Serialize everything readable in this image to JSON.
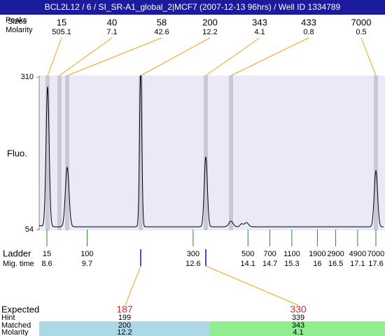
{
  "header": {
    "title": "BCL2L12 / 6 / SI_SR-A1_global_2|MCF7 (2007-12-13 96hrs) / Well ID 1334789"
  },
  "peaks": {
    "size_label": "Sizes",
    "peak_label": "Peaks",
    "molarity_label": "Molarity",
    "sizes": [
      15,
      40,
      58,
      200,
      343,
      433,
      7000
    ],
    "molarities": [
      505.1,
      7.1,
      42.6,
      12.2,
      4.1,
      0.8,
      0.5
    ]
  },
  "fluo": {
    "label": "Fluo.",
    "ylim": [
      54,
      310
    ],
    "yticks": [
      54,
      310
    ]
  },
  "ladder": {
    "label": "Ladder",
    "time_label": "Mig. time",
    "sizes": [
      15,
      100,
      300,
      500,
      700,
      1100,
      1900,
      2900,
      4900,
      7000
    ],
    "times": [
      8.6,
      9.7,
      12.6,
      14.1,
      14.7,
      15.3,
      16,
      16.5,
      17.1,
      17.6
    ]
  },
  "expected": {
    "labels": [
      "Expected",
      "Hint",
      "Matched",
      "Molarity"
    ],
    "columns": [
      {
        "expected": 187,
        "hint": 199,
        "matched": 200,
        "molarity": 12.2
      },
      {
        "expected": 330,
        "hint": 339,
        "matched": 343,
        "molarity": 4.1
      }
    ]
  }
}
